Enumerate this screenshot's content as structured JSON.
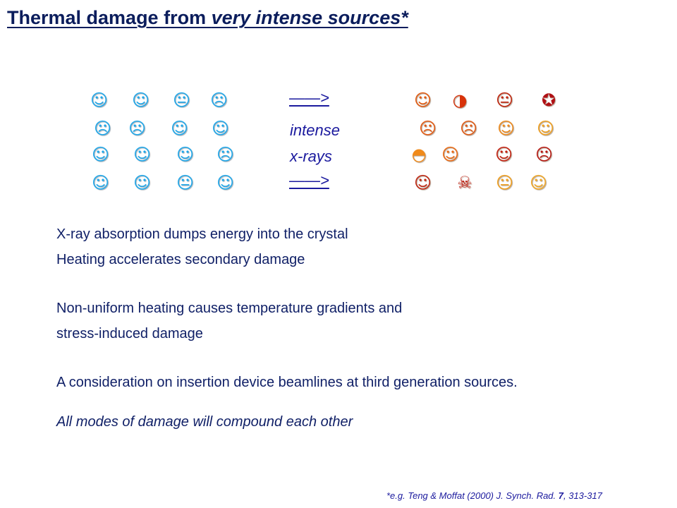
{
  "title": {
    "part1": "Thermal damage from ",
    "part2": "very intense sources*"
  },
  "diagram": {
    "arrow_top": "——>",
    "arrow_bottom": "——>",
    "label_line1": "intense",
    "label_line2": "x-rays",
    "before_rows": [
      [
        {
          "glyph": "☺"
        },
        {
          "glyph": "☺"
        },
        {
          "glyph": "😐"
        },
        {
          "glyph": "☹"
        }
      ],
      [
        {
          "glyph": "☹"
        },
        {
          "glyph": "☹"
        },
        {
          "glyph": "☺"
        },
        {
          "glyph": "☺"
        }
      ],
      [
        {
          "glyph": "☺"
        },
        {
          "glyph": "☺"
        },
        {
          "glyph": "☺"
        },
        {
          "glyph": "☹"
        }
      ],
      [
        {
          "glyph": "☺"
        },
        {
          "glyph": "☺"
        },
        {
          "glyph": "😐"
        },
        {
          "glyph": "☺"
        }
      ]
    ],
    "after_rows": [
      [
        {
          "glyph": "☺",
          "color": "#e35a10"
        },
        {
          "glyph": "◑",
          "color": "#d8320a"
        },
        {
          "glyph": "😐",
          "color": "#c0250e"
        },
        {
          "glyph": "✪",
          "color": "#b01014"
        }
      ],
      [
        {
          "glyph": "☹",
          "color": "#e45a12"
        },
        {
          "glyph": "☹",
          "color": "#e05a14"
        },
        {
          "glyph": "☺",
          "color": "#ee8a1c"
        },
        {
          "glyph": "☺",
          "color": "#f0a020"
        }
      ],
      [
        {
          "glyph": "◓",
          "color": "#f08a1a"
        },
        {
          "glyph": "☺",
          "color": "#ea6a14"
        },
        {
          "glyph": "☺",
          "color": "#c42010"
        },
        {
          "glyph": "☹",
          "color": "#b81812"
        }
      ],
      [
        {
          "glyph": "☺",
          "color": "#c02612"
        },
        {
          "glyph": "☠",
          "color": "#c21c10"
        },
        {
          "glyph": "😐",
          "color": "#f0a020"
        },
        {
          "glyph": "☺",
          "color": "#f0a828"
        }
      ]
    ]
  },
  "body": {
    "line1": "X-ray absorption dumps energy into the crystal",
    "line2": "Heating accelerates secondary damage",
    "line3": "Non-uniform heating causes temperature gradients and",
    "line4": "stress-induced damage",
    "line5": "A consideration on insertion device beamlines at third generation sources.",
    "line6": "All modes of damage will compound each other"
  },
  "footnote": {
    "prefix": "*e.g.   Teng & Moffat (2000) J. Synch. Rad. ",
    "volume": "7",
    "pages": ", 313-317"
  }
}
